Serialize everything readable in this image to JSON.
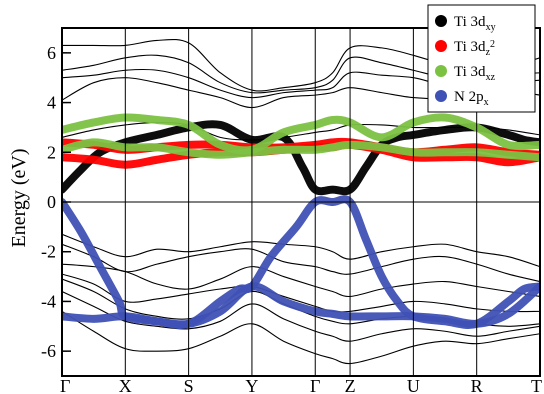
{
  "chart_data": {
    "type": "line",
    "ylabel": "Energy (eV)",
    "ylim": [
      -7,
      7
    ],
    "yticks": [
      6,
      4,
      2,
      0,
      -2,
      -4,
      -6
    ],
    "kpoints": [
      "Γ",
      "X",
      "S",
      "Y",
      "Γ",
      "Z",
      "U",
      "R",
      "T"
    ],
    "kpoint_x": [
      0,
      1,
      2,
      3,
      4,
      4.55,
      5.55,
      6.55,
      7.55
    ],
    "fermi_level": 0,
    "legend_position": "top-right",
    "legend": [
      {
        "main": "Ti 3d",
        "sub": "xy",
        "sup": "",
        "color": "#000000"
      },
      {
        "main": "Ti 3d",
        "sub": "z",
        "sup": "2",
        "color": "#ff0000"
      },
      {
        "main": "Ti 3d",
        "sub": "xz",
        "sup": "",
        "color": "#7cc242"
      },
      {
        "main": "N 2p",
        "sub": "x",
        "sup": "",
        "color": "#3f51b5"
      }
    ],
    "bands": [
      {
        "x": [
          0,
          0.5,
          1,
          1.5,
          2,
          2.5,
          3,
          3.5,
          4,
          4.275,
          4.55,
          5.05,
          5.55,
          6.05,
          6.55,
          7.05,
          7.55
        ],
        "y": [
          6.3,
          6.3,
          6.3,
          6.5,
          6.4,
          5.2,
          4.5,
          4.6,
          4.8,
          5.2,
          6.2,
          6.2,
          5.9,
          5.5,
          5.0,
          5.4,
          5.8
        ]
      },
      {
        "x": [
          0,
          0.5,
          1,
          1.5,
          2,
          2.5,
          3,
          3.5,
          4,
          4.275,
          4.55,
          5.05,
          5.55,
          6.05,
          6.55,
          7.05,
          7.55
        ],
        "y": [
          5.3,
          5.5,
          5.8,
          5.9,
          5.6,
          4.8,
          4.4,
          4.5,
          4.6,
          4.9,
          5.8,
          5.6,
          5.3,
          5.0,
          4.9,
          5.1,
          5.2
        ]
      },
      {
        "x": [
          0,
          0.5,
          1,
          1.5,
          2,
          2.5,
          3,
          3.5,
          4,
          4.275,
          4.55,
          5.05,
          5.55,
          6.05,
          6.55,
          7.05,
          7.55
        ],
        "y": [
          5.0,
          5.1,
          5.3,
          5.3,
          5.0,
          4.5,
          4.2,
          4.4,
          4.5,
          4.6,
          5.2,
          5.1,
          5.0,
          4.7,
          4.7,
          4.8,
          4.9
        ]
      },
      {
        "x": [
          0,
          0.5,
          1,
          1.5,
          2,
          2.5,
          3,
          3.5,
          4,
          4.275,
          4.55,
          5.05,
          5.55,
          6.05,
          6.55,
          7.05,
          7.55
        ],
        "y": [
          4.1,
          4.8,
          5.0,
          4.8,
          4.5,
          4.2,
          3.8,
          4.2,
          4.3,
          4.4,
          4.6,
          4.4,
          4.2,
          4.2,
          4.6,
          4.5,
          4.3
        ]
      },
      {
        "x": [
          0,
          0.5,
          1,
          1.5,
          2,
          2.5,
          3,
          3.5,
          4,
          4.275,
          4.55,
          5.05,
          5.55,
          6.05,
          6.55,
          7.05,
          7.55
        ],
        "y": [
          2.6,
          2.9,
          3.1,
          3.2,
          3.1,
          2.6,
          2.5,
          2.6,
          2.8,
          2.9,
          3.1,
          3.1,
          3.0,
          3.0,
          3.0,
          2.9,
          2.7
        ]
      },
      {
        "x": [
          0,
          0.5,
          1,
          1.5,
          2,
          2.5,
          3,
          3.5,
          4,
          4.275,
          4.55,
          5.05,
          5.55,
          6.05,
          6.55,
          7.05,
          7.55
        ],
        "y": [
          -1.3,
          -1.8,
          -2.2,
          -1.9,
          -2.0,
          -1.8,
          -1.6,
          -1.7,
          -1.8,
          -2.0,
          -2.3,
          -2.0,
          -1.8,
          -1.7,
          -2.0,
          -2.2,
          -2.6
        ]
      },
      {
        "x": [
          0,
          0.5,
          1,
          1.5,
          2,
          2.5,
          3,
          3.5,
          4,
          4.275,
          4.55,
          5.05,
          5.55,
          6.05,
          6.55,
          7.05,
          7.55
        ],
        "y": [
          -1.7,
          -2.2,
          -2.8,
          -2.5,
          -2.2,
          -2.0,
          -1.9,
          -2.4,
          -2.6,
          -2.8,
          -2.9,
          -2.6,
          -2.3,
          -2.2,
          -2.5,
          -2.9,
          -3.2
        ]
      },
      {
        "x": [
          0,
          0.5,
          1,
          1.5,
          2,
          2.5,
          3,
          3.5,
          4,
          4.275,
          4.55,
          5.05,
          5.55,
          6.05,
          6.55,
          7.05,
          7.55
        ],
        "y": [
          -2.5,
          -2.6,
          -2.8,
          -3.3,
          -3.5,
          -3.1,
          -2.6,
          -3.0,
          -3.4,
          -3.6,
          -3.8,
          -3.5,
          -3.3,
          -3.2,
          -3.4,
          -3.6,
          -3.8
        ]
      },
      {
        "x": [
          0,
          0.5,
          1,
          1.5,
          2,
          2.5,
          3,
          3.5,
          4,
          4.275,
          4.55,
          5.05,
          5.55,
          6.05,
          6.55,
          7.05,
          7.55
        ],
        "y": [
          -2.9,
          -3.3,
          -4.0,
          -3.9,
          -3.7,
          -3.5,
          -3.4,
          -3.8,
          -4.2,
          -4.4,
          -4.4,
          -4.2,
          -4.0,
          -4.1,
          -4.3,
          -4.4,
          -4.4
        ]
      },
      {
        "x": [
          0,
          0.5,
          1,
          1.5,
          2,
          2.5,
          3,
          3.5,
          4,
          4.275,
          4.55,
          5.05,
          5.55,
          6.05,
          6.55,
          7.05,
          7.55
        ],
        "y": [
          -3.1,
          -3.6,
          -4.3,
          -4.6,
          -4.7,
          -4.3,
          -3.6,
          -4.1,
          -4.6,
          -4.8,
          -4.9,
          -4.7,
          -4.6,
          -4.7,
          -4.9,
          -5.0,
          -4.9
        ]
      },
      {
        "x": [
          0,
          0.5,
          1,
          1.5,
          2,
          2.5,
          3,
          3.5,
          4,
          4.275,
          4.55,
          5.05,
          5.55,
          6.05,
          6.55,
          7.05,
          7.55
        ],
        "y": [
          -3.6,
          -4.2,
          -4.8,
          -5.0,
          -5.1,
          -4.8,
          -4.1,
          -4.7,
          -5.2,
          -5.4,
          -5.6,
          -5.3,
          -5.1,
          -5.2,
          -5.4,
          -5.2,
          -5.0
        ]
      },
      {
        "x": [
          0,
          0.5,
          1,
          1.5,
          2,
          2.5,
          3,
          3.5,
          4,
          4.275,
          4.55,
          5.05,
          5.55,
          6.05,
          6.55,
          7.05,
          7.55
        ],
        "y": [
          -4.4,
          -5.2,
          -5.9,
          -6.0,
          -5.9,
          -5.4,
          -4.9,
          -5.6,
          -6.1,
          -6.3,
          -6.5,
          -6.2,
          -5.8,
          -5.6,
          -5.7,
          -5.5,
          -5.3
        ]
      }
    ],
    "series": [
      {
        "name": "Ti 3d_xy",
        "color": "#000000",
        "x": [
          0,
          0.3,
          0.6,
          1,
          1.5,
          2,
          2.5,
          3,
          3.5,
          3.8,
          4,
          4.275,
          4.55,
          4.8,
          5.05,
          5.3,
          5.55,
          6.05,
          6.55,
          7.05,
          7.3,
          7.55
        ],
        "y": [
          0.5,
          1.3,
          2.0,
          2.4,
          2.7,
          3.0,
          3.1,
          2.5,
          2.6,
          1.4,
          0.5,
          0.5,
          0.5,
          1.4,
          2.3,
          2.6,
          2.7,
          2.9,
          3.0,
          2.7,
          2.5,
          2.4
        ]
      },
      {
        "name": "Ti 3d_z2",
        "color": "#ff0000",
        "x": [
          0,
          0.5,
          1,
          1.5,
          2,
          2.5,
          3,
          3.5,
          4,
          4.275,
          4.55,
          5.05,
          5.55,
          6.05,
          6.55,
          7.05,
          7.55
        ],
        "y": [
          2.4,
          2.3,
          2.1,
          2.2,
          2.3,
          2.3,
          2.2,
          2.2,
          2.3,
          2.4,
          2.4,
          2.2,
          2.0,
          2.1,
          2.2,
          2.0,
          1.9
        ]
      },
      {
        "name": "Ti 3d_z2",
        "color": "#ff0000",
        "x": [
          0,
          0.5,
          1,
          1.5,
          2,
          2.5,
          3,
          3.5,
          4,
          4.275,
          4.55,
          5.05,
          5.55,
          6.05,
          6.55,
          7.05,
          7.55
        ],
        "y": [
          1.8,
          1.7,
          1.5,
          1.7,
          1.9,
          2.0,
          2.0,
          2.1,
          2.2,
          2.2,
          2.3,
          2.1,
          1.8,
          1.8,
          1.8,
          1.6,
          1.8
        ]
      },
      {
        "name": "Ti 3d_xz",
        "color": "#7cc242",
        "x": [
          0,
          0.5,
          1,
          1.5,
          2,
          2.5,
          3,
          3.5,
          4,
          4.275,
          4.55,
          5.05,
          5.55,
          6.05,
          6.55,
          7.05,
          7.55
        ],
        "y": [
          2.9,
          3.2,
          3.4,
          3.3,
          3.1,
          2.3,
          2.1,
          2.8,
          3.1,
          3.3,
          3.2,
          2.6,
          3.2,
          3.4,
          3.0,
          2.3,
          2.3
        ]
      },
      {
        "name": "Ti 3d_xz",
        "color": "#7cc242",
        "x": [
          0,
          0.5,
          1,
          1.5,
          2,
          2.5,
          3,
          3.5,
          4,
          4.275,
          4.55,
          5.05,
          5.55,
          6.05,
          6.55,
          7.05,
          7.55
        ],
        "y": [
          2.1,
          2.4,
          2.2,
          2.2,
          2.0,
          1.9,
          2.0,
          2.1,
          2.1,
          2.2,
          2.3,
          2.2,
          2.0,
          2.0,
          2.0,
          1.9,
          1.8
        ]
      },
      {
        "name": "N 2p_x",
        "color": "#3f51b5",
        "x": [
          0,
          0.3,
          0.6,
          0.9,
          1,
          1.5,
          2,
          2.5,
          2.8,
          3,
          3.3,
          3.7,
          4,
          4.275,
          4.55,
          4.8,
          5.05,
          5.3,
          5.55,
          6.05,
          6.55,
          7.05,
          7.3,
          7.55
        ],
        "y": [
          0,
          -1.2,
          -2.6,
          -4.0,
          -4.6,
          -4.8,
          -4.9,
          -4.0,
          -3.5,
          -3.4,
          -2.2,
          -1.0,
          0,
          0,
          0,
          -1.5,
          -3.0,
          -4.0,
          -4.6,
          -4.8,
          -4.9,
          -4.0,
          -3.5,
          -3.4
        ]
      },
      {
        "name": "N 2p_x",
        "color": "#3f51b5",
        "x": [
          0,
          0.5,
          1,
          1.5,
          2,
          2.5,
          3,
          3.5,
          4,
          4.275,
          4.55,
          5.05,
          5.55,
          6.05,
          6.55,
          7.05,
          7.55
        ],
        "y": [
          -4.6,
          -4.7,
          -4.6,
          -4.8,
          -4.9,
          -4.4,
          -3.4,
          -4.0,
          -4.4,
          -4.5,
          -4.6,
          -4.6,
          -4.6,
          -4.7,
          -4.9,
          -4.5,
          -3.4
        ]
      }
    ]
  }
}
